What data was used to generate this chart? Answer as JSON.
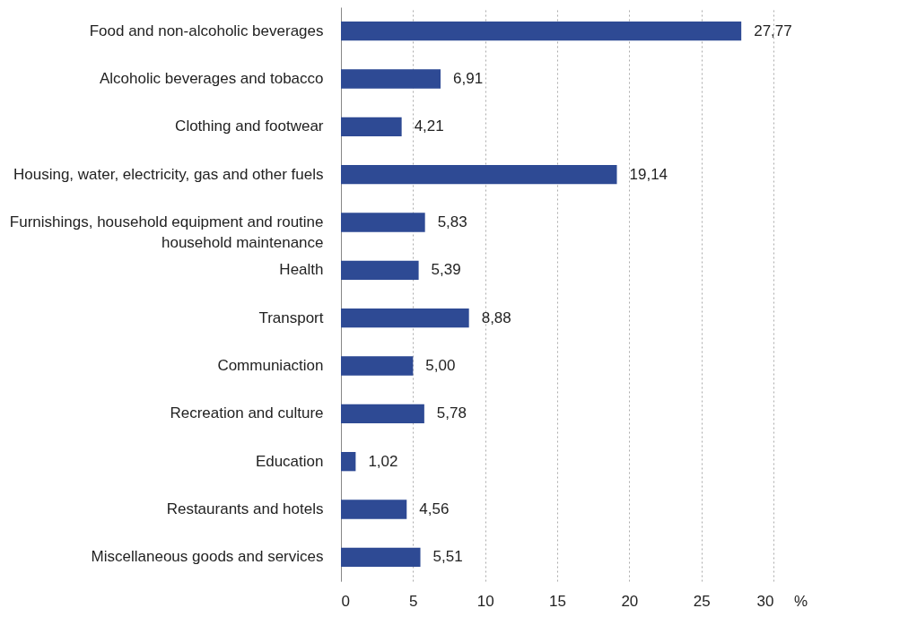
{
  "chart_data": {
    "type": "bar",
    "orientation": "horizontal",
    "categories": [
      "Food and non-alcoholic beverages",
      "Alcoholic beverages and tobacco",
      "Clothing and footwear",
      "Housing, water, electricity, gas and other fuels",
      "Furnishings, household equipment and routine household maintenance",
      "Health",
      "Transport",
      "Communiaction",
      "Recreation and culture",
      "Education",
      "Restaurants and hotels",
      "Miscellaneous goods and services"
    ],
    "values": [
      27.77,
      6.91,
      4.21,
      19.14,
      5.83,
      5.39,
      8.88,
      5.0,
      5.78,
      1.02,
      4.56,
      5.51
    ],
    "value_labels": [
      "27,77",
      "6,91",
      "4,21",
      "19,14",
      "5,83",
      "5,39",
      "8,88",
      "5,00",
      "5,78",
      "1,02",
      "4,56",
      "5,51"
    ],
    "color": "#2e4a94",
    "xlabel": "%",
    "xlim": [
      0,
      30
    ],
    "xticks": [
      0,
      5,
      10,
      15,
      20,
      25,
      30
    ],
    "grid": "x"
  }
}
